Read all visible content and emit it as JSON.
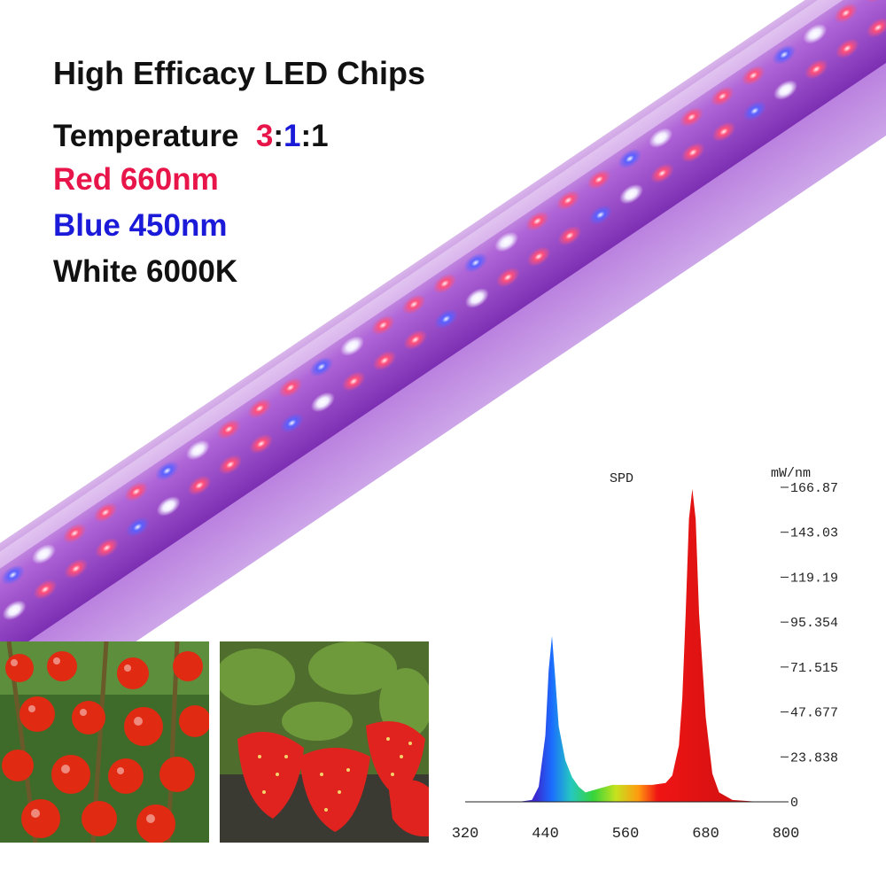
{
  "headline": {
    "title": "High Efficacy LED Chips",
    "temperature_label": "Temperature",
    "ratio_red": "3",
    "ratio_sep1": ":",
    "ratio_blue": "1",
    "ratio_sep2": ":1",
    "red_spec": "Red 660nm",
    "blue_spec": "Blue 450nm",
    "white_spec": "White 6000K"
  },
  "colors": {
    "red_text": "#e8154a",
    "blue_text": "#1a1ad8",
    "tube_purple": "#a24bd6",
    "black": "#111111"
  },
  "photos": [
    {
      "subject": "cherry-tomatoes"
    },
    {
      "subject": "strawberries"
    }
  ],
  "chart_data": {
    "type": "area",
    "title": "SPD",
    "unit_label": "mW/nm",
    "x_ticks": [
      "320",
      "440",
      "560",
      "680",
      "800"
    ],
    "y_ticks": [
      "0",
      "23.838",
      "47.677",
      "71.515",
      "95.354",
      "119.19",
      "143.03",
      "166.87"
    ],
    "xlim": [
      320,
      800
    ],
    "ylim": [
      0,
      166.87
    ],
    "series": [
      {
        "x": [
          320,
          400,
          420,
          430,
          440,
          445,
          450,
          455,
          460,
          470,
          480,
          490,
          500,
          520,
          540,
          560,
          580,
          600,
          620,
          630,
          640,
          645,
          650,
          655,
          660,
          665,
          670,
          680,
          690,
          700,
          720,
          760,
          800
        ],
        "y": [
          0,
          0,
          1,
          8,
          35,
          70,
          88,
          65,
          40,
          22,
          13,
          8,
          5,
          7,
          9,
          9,
          9,
          9,
          10,
          14,
          30,
          55,
          100,
          150,
          166,
          150,
          100,
          45,
          15,
          5,
          1,
          0,
          0
        ]
      }
    ]
  }
}
